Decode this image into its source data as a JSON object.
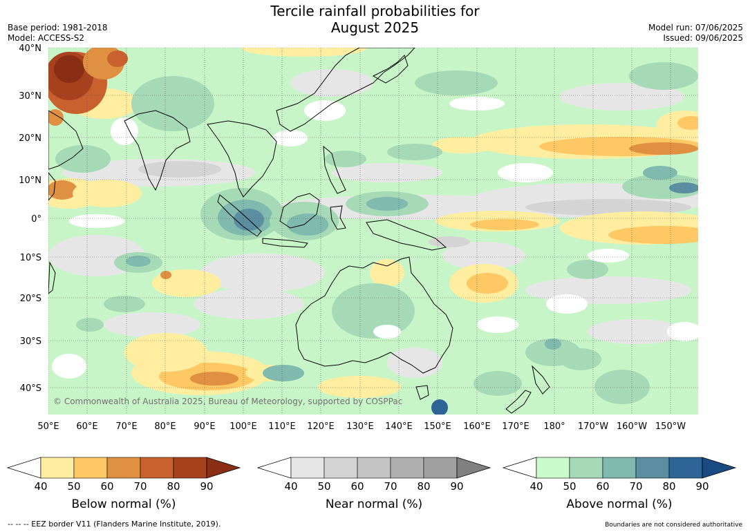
{
  "title_line1": "Tercile rainfall probabilities for",
  "title_line2": "August 2025",
  "base_period": "Base period: 1981-2018",
  "model": "Model: ACCESS-S2",
  "model_run": "Model run: 07/06/2025",
  "issued": "Issued: 09/06/2025",
  "copyright": "© Commonwealth of Australia 2025, Bureau of Meteorology, supported by COSPPac",
  "map": {
    "lat_labels": [
      "40°N",
      "30°N",
      "20°N",
      "10°N",
      "0°",
      "10°S",
      "20°S",
      "30°S",
      "40°S"
    ],
    "lon_labels": [
      "50°E",
      "60°E",
      "70°E",
      "80°E",
      "90°E",
      "100°E",
      "110°E",
      "120°E",
      "130°E",
      "140°E",
      "150°E",
      "160°E",
      "170°E",
      "180°",
      "170°W",
      "160°W",
      "150°W"
    ],
    "colors": {
      "land_base": "#c8f5c8",
      "below": [
        "#ffeea0",
        "#fec864",
        "#df9040",
        "#c8612e",
        "#a8411e",
        "#8a2e16"
      ],
      "near": [
        "#e6e6e6",
        "#d4d4d4",
        "#c4c4c4",
        "#b0b0b0",
        "#a0a0a0"
      ],
      "above": [
        "#c8facc",
        "#a6d9b6",
        "#80b9ad",
        "#5a8ea0",
        "#2f6496",
        "#1a4a82"
      ]
    }
  },
  "colorbars": [
    {
      "title": "Below normal (%)",
      "ticks": [
        "40",
        "50",
        "60",
        "70",
        "80",
        "90"
      ],
      "colors": [
        "#ffeea0",
        "#fec864",
        "#df9040",
        "#c8612e",
        "#a8411e"
      ],
      "over_color": "#8a2e16"
    },
    {
      "title": "Near normal (%)",
      "ticks": [
        "40",
        "50",
        "60",
        "70",
        "80",
        "90"
      ],
      "colors": [
        "#e6e6e6",
        "#d4d4d4",
        "#c4c4c4",
        "#b0b0b0",
        "#a0a0a0"
      ],
      "over_color": "#808080"
    },
    {
      "title": "Above normal (%)",
      "ticks": [
        "40",
        "50",
        "60",
        "70",
        "80",
        "90"
      ],
      "colors": [
        "#c8facc",
        "#a6d9b6",
        "#80b9ad",
        "#5a8ea0",
        "#2f6496"
      ],
      "over_color": "#1a4a82"
    }
  ],
  "footer_left": "-- -- -- EEZ border V11 (Flanders Marine Institute, 2019).",
  "footer_right": "Boundaries are not considered authoritative"
}
